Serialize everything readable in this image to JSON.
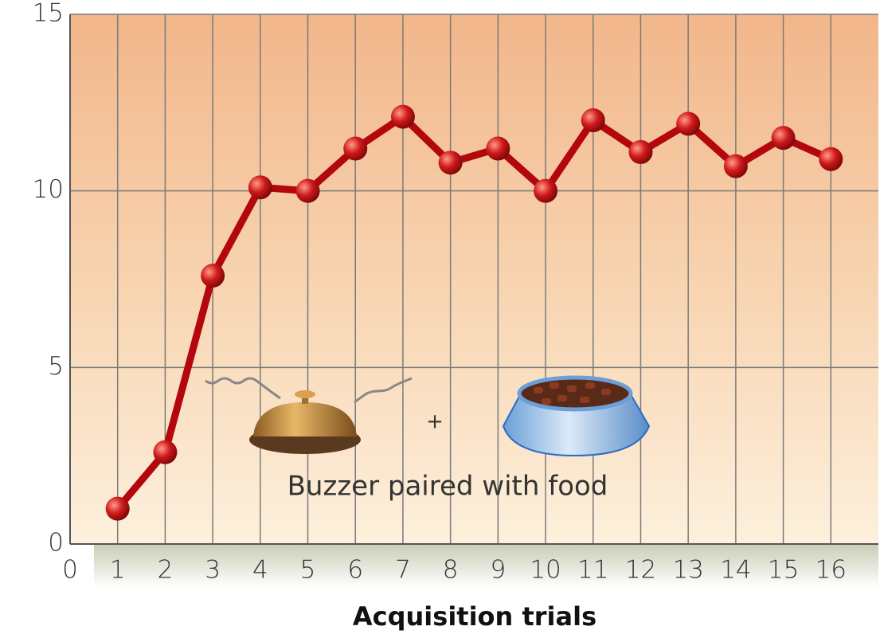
{
  "chart_data": {
    "type": "line",
    "x": [
      1,
      2,
      3,
      4,
      5,
      6,
      7,
      8,
      9,
      10,
      11,
      12,
      13,
      14,
      15,
      16
    ],
    "values": [
      1.0,
      2.6,
      7.6,
      10.1,
      10.0,
      11.2,
      12.1,
      10.8,
      11.2,
      10.0,
      12.0,
      11.1,
      11.9,
      10.7,
      11.5,
      10.9
    ],
    "color": "#b3070d",
    "xlabel": "Acquisition trials",
    "xlim": [
      0,
      17
    ],
    "xticks": [
      0,
      1,
      2,
      3,
      4,
      5,
      6,
      7,
      8,
      9,
      10,
      11,
      12,
      13,
      14,
      15,
      16
    ],
    "ylim": [
      0,
      15
    ],
    "yticks": [
      0,
      5,
      10,
      15
    ],
    "grid": true,
    "annotations": [
      "+",
      "Buzzer paired with food"
    ]
  }
}
